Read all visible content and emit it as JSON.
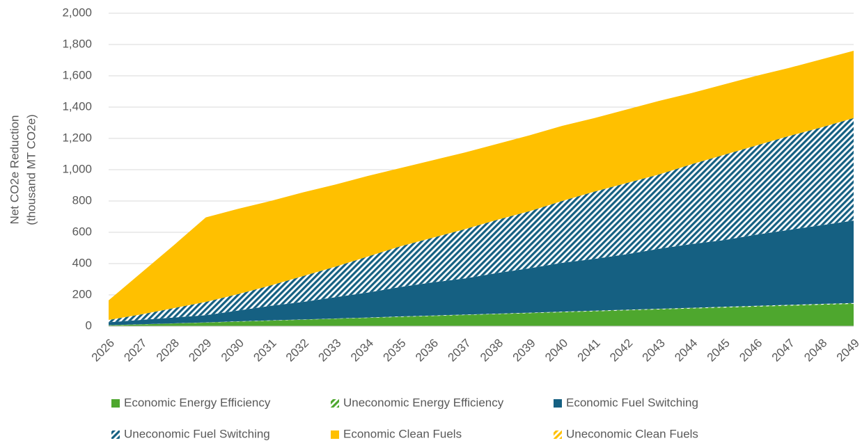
{
  "chart_data": {
    "type": "stacked_area",
    "y_label": [
      "Net CO2e Reduction",
      "(thousand MT CO2e)"
    ],
    "categories": [
      "2026",
      "2027",
      "2028",
      "2029",
      "2030",
      "2031",
      "2032",
      "2033",
      "2034",
      "2035",
      "2036",
      "2037",
      "2038",
      "2039",
      "2040",
      "2041",
      "2042",
      "2043",
      "2044",
      "2045",
      "2046",
      "2047",
      "2048",
      "2049"
    ],
    "series": [
      {
        "name": "Economic Energy Efficiency",
        "color": "#4ea72e",
        "hatched": false,
        "values": [
          5,
          11,
          17,
          23,
          29,
          35,
          41,
          47,
          53,
          59,
          65,
          71,
          77,
          83,
          89,
          95,
          101,
          107,
          113,
          119,
          125,
          131,
          137,
          143
        ]
      },
      {
        "name": "Uneconomic Energy Efficiency",
        "color": "#4ea72e",
        "hatched": true,
        "values": [
          1,
          1,
          1,
          1,
          2,
          2,
          2,
          2,
          2,
          3,
          3,
          3,
          3,
          3,
          4,
          4,
          4,
          4,
          4,
          5,
          5,
          5,
          5,
          5
        ]
      },
      {
        "name": "Economic Fuel Switching",
        "color": "#156082",
        "hatched": false,
        "values": [
          19,
          28,
          37,
          46,
          69,
          93,
          112,
          136,
          160,
          188,
          212,
          231,
          260,
          284,
          312,
          331,
          355,
          384,
          408,
          426,
          455,
          479,
          503,
          527
        ]
      },
      {
        "name": "Uneconomic Fuel Switching",
        "color": "#156082",
        "hatched": true,
        "values": [
          15,
          35,
          60,
          85,
          105,
          130,
          165,
          195,
          230,
          260,
          285,
          315,
          340,
          365,
          395,
          430,
          455,
          475,
          510,
          545,
          570,
          600,
          625,
          655
        ]
      },
      {
        "name": "Economic Clean Fuels",
        "color": "#ffc000",
        "hatched": false,
        "values": [
          125,
          265,
          400,
          540,
          545,
          540,
          535,
          525,
          515,
          500,
          495,
          490,
          485,
          485,
          480,
          470,
          470,
          470,
          455,
          450,
          445,
          435,
          435,
          430
        ]
      },
      {
        "name": "Uneconomic Clean Fuels",
        "color": "#ffc000",
        "hatched": true,
        "values": [
          0,
          0,
          0,
          0,
          0,
          0,
          0,
          0,
          0,
          0,
          0,
          0,
          0,
          0,
          0,
          0,
          0,
          0,
          0,
          0,
          0,
          0,
          0,
          0
        ]
      }
    ],
    "ylim": [
      0,
      2000
    ],
    "yticks": [
      0,
      200,
      400,
      600,
      800,
      {
        "value": 1000,
        "label": "1,000"
      },
      {
        "value": 1200,
        "label": "1,200"
      },
      {
        "value": 1400,
        "label": "1,400"
      },
      {
        "value": 1600,
        "label": "1,600"
      },
      {
        "value": 1800,
        "label": "1,800"
      },
      {
        "value": 2000,
        "label": "2,000"
      }
    ],
    "grid": true,
    "legend": "bottom"
  }
}
